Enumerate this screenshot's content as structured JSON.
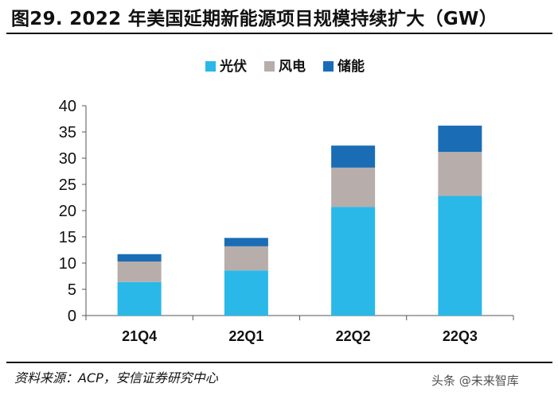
{
  "figure": {
    "title": "图29. 2022 年美国延期新能源项目规模持续扩大（GW）",
    "source": "资料来源：ACP，安信证券研究中心",
    "watermark": "头条 @未来智库"
  },
  "chart_data": {
    "type": "bar",
    "stacked": true,
    "title": "图29. 2022 年美国延期新能源项目规模持续扩大（GW）",
    "xlabel": "",
    "ylabel": "",
    "unit": "GW",
    "categories": [
      "21Q4",
      "22Q1",
      "22Q2",
      "22Q3"
    ],
    "series": [
      {
        "name": "光伏",
        "color": "#29b8e8",
        "values": [
          6.4,
          8.6,
          20.7,
          22.8
        ]
      },
      {
        "name": "风电",
        "color": "#b7adab",
        "values": [
          3.9,
          4.6,
          7.5,
          8.4
        ]
      },
      {
        "name": "储能",
        "color": "#1a6db5",
        "values": [
          1.4,
          1.6,
          4.2,
          5.0
        ]
      }
    ],
    "ylim": [
      0,
      40
    ],
    "yticks": [
      0,
      5,
      10,
      15,
      20,
      25,
      30,
      35,
      40
    ],
    "legend_position": "top-center",
    "grid": false
  }
}
